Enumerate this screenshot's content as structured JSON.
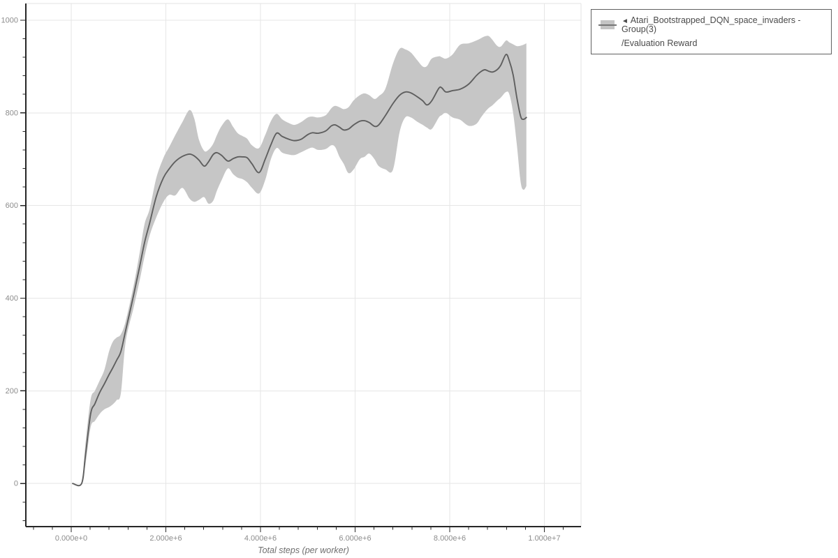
{
  "legend": {
    "collapse_icon": "◄",
    "series_label": "Atari_Bootstrapped_DQN_space_invaders - Group(3)",
    "metric_label": "/Evaluation Reward"
  },
  "colors": {
    "background": "#ffffff",
    "plot_background": "#ffffff",
    "grid": "#e6e6e6",
    "plot_border": "#e3e3e3",
    "axis": "#262626",
    "tick_label": "#8c8c8c",
    "axis_title": "#6f6f6f",
    "line": "#5f5f5f",
    "band": "#c6c6c6",
    "legend_border": "#606060",
    "legend_text": "#4a4a4a"
  },
  "chart_data": {
    "type": "line",
    "band": true,
    "title": "",
    "xlabel": "Total steps (per worker)",
    "ylabel": "",
    "grid": "major-only",
    "legend_position": "outside-top-right",
    "xlim": [
      -959000,
      10775000
    ],
    "ylim": [
      -93,
      1036
    ],
    "x_minor_tick_step": 400000,
    "y_minor_tick_step": 40,
    "x_major_tick_step": 2000000,
    "y_major_tick_step": 200,
    "x_ticks": [
      {
        "value": 0,
        "label": "0.000e+0"
      },
      {
        "value": 2000000,
        "label": "2.000e+6"
      },
      {
        "value": 4000000,
        "label": "4.000e+6"
      },
      {
        "value": 6000000,
        "label": "6.000e+6"
      },
      {
        "value": 8000000,
        "label": "8.000e+6"
      },
      {
        "value": 10000000,
        "label": "1.000e+7"
      }
    ],
    "y_ticks": [
      {
        "value": 0,
        "label": "0"
      },
      {
        "value": 200,
        "label": "200"
      },
      {
        "value": 400,
        "label": "400"
      },
      {
        "value": 600,
        "label": "600"
      },
      {
        "value": 800,
        "label": "800"
      },
      {
        "value": 1000,
        "label": "1000"
      }
    ],
    "series": [
      {
        "name": "Atari_Bootstrapped_DQN_space_invaders - Group(3)/Evaluation Reward",
        "line_color": "#5f5f5f",
        "band_color": "#c6c6c6",
        "points_format": [
          "steps",
          "mean",
          "band_low",
          "band_high"
        ],
        "points": [
          [
            30000,
            0,
            0,
            0
          ],
          [
            220000,
            0,
            0,
            0
          ],
          [
            300000,
            60,
            40,
            85
          ],
          [
            410000,
            150,
            121,
            181
          ],
          [
            500000,
            172,
            135,
            200
          ],
          [
            600000,
            196,
            150,
            222
          ],
          [
            700000,
            215,
            160,
            245
          ],
          [
            800000,
            235,
            165,
            285
          ],
          [
            880000,
            250,
            171,
            306
          ],
          [
            960000,
            266,
            180,
            315
          ],
          [
            1050000,
            285,
            195,
            322
          ],
          [
            1150000,
            330,
            305,
            350
          ],
          [
            1320000,
            407,
            380,
            428
          ],
          [
            1450000,
            470,
            440,
            500
          ],
          [
            1550000,
            520,
            490,
            560
          ],
          [
            1660000,
            563,
            536,
            593
          ],
          [
            1800000,
            620,
            575,
            660
          ],
          [
            1950000,
            660,
            608,
            703
          ],
          [
            2070000,
            679,
            623,
            726
          ],
          [
            2200000,
            695,
            622,
            752
          ],
          [
            2350000,
            706,
            638,
            780
          ],
          [
            2500000,
            711,
            615,
            806
          ],
          [
            2600000,
            707,
            608,
            788
          ],
          [
            2700000,
            698,
            612,
            742
          ],
          [
            2810000,
            685,
            618,
            718
          ],
          [
            2900000,
            694,
            604,
            720
          ],
          [
            3000000,
            710,
            610,
            733
          ],
          [
            3080000,
            714,
            632,
            752
          ],
          [
            3180000,
            708,
            655,
            772
          ],
          [
            3310000,
            696,
            680,
            786
          ],
          [
            3420000,
            701,
            668,
            770
          ],
          [
            3520000,
            705,
            660,
            756
          ],
          [
            3620000,
            705,
            657,
            750
          ],
          [
            3720000,
            703,
            650,
            744
          ],
          [
            3820000,
            690,
            638,
            730
          ],
          [
            3970000,
            671,
            626,
            724
          ],
          [
            4100000,
            700,
            655,
            752
          ],
          [
            4220000,
            731,
            700,
            782
          ],
          [
            4340000,
            756,
            724,
            798
          ],
          [
            4460000,
            749,
            714,
            786
          ],
          [
            4600000,
            743,
            710,
            778
          ],
          [
            4720000,
            740,
            709,
            774
          ],
          [
            4860000,
            743,
            715,
            780
          ],
          [
            5000000,
            753,
            722,
            790
          ],
          [
            5100000,
            757,
            725,
            792
          ],
          [
            5220000,
            756,
            720,
            790
          ],
          [
            5380000,
            761,
            722,
            795
          ],
          [
            5500000,
            772,
            730,
            810
          ],
          [
            5580000,
            774,
            726,
            815
          ],
          [
            5670000,
            769,
            705,
            812
          ],
          [
            5760000,
            763,
            690,
            808
          ],
          [
            5860000,
            765,
            670,
            812
          ],
          [
            5970000,
            774,
            678,
            827
          ],
          [
            6100000,
            782,
            700,
            838
          ],
          [
            6200000,
            783,
            705,
            842
          ],
          [
            6300000,
            779,
            712,
            838
          ],
          [
            6410000,
            771,
            700,
            830
          ],
          [
            6500000,
            774,
            685,
            836
          ],
          [
            6640000,
            794,
            678,
            852
          ],
          [
            6800000,
            820,
            677,
            906
          ],
          [
            6940000,
            838,
            758,
            938
          ],
          [
            7060000,
            845,
            790,
            937
          ],
          [
            7180000,
            843,
            790,
            930
          ],
          [
            7310000,
            835,
            781,
            914
          ],
          [
            7430000,
            826,
            774,
            900
          ],
          [
            7520000,
            817,
            768,
            901
          ],
          [
            7620000,
            826,
            765,
            917
          ],
          [
            7770000,
            853,
            790,
            922
          ],
          [
            7830000,
            854,
            795,
            920
          ],
          [
            7920000,
            845,
            800,
            917
          ],
          [
            8060000,
            848,
            790,
            926
          ],
          [
            8220000,
            851,
            785,
            947
          ],
          [
            8400000,
            862,
            772,
            950
          ],
          [
            8560000,
            880,
            776,
            956
          ],
          [
            8660000,
            889,
            790,
            961
          ],
          [
            8740000,
            893,
            801,
            965
          ],
          [
            8820000,
            890,
            810,
            966
          ],
          [
            8900000,
            888,
            816,
            958
          ],
          [
            9000000,
            893,
            826,
            945
          ],
          [
            9080000,
            903,
            833,
            943
          ],
          [
            9190000,
            926,
            845,
            956
          ],
          [
            9260000,
            912,
            840,
            952
          ],
          [
            9340000,
            882,
            800,
            948
          ],
          [
            9420000,
            832,
            730,
            944
          ],
          [
            9500000,
            792,
            650,
            945
          ],
          [
            9560000,
            786,
            634,
            947
          ],
          [
            9620000,
            790,
            642,
            950
          ]
        ]
      }
    ]
  }
}
